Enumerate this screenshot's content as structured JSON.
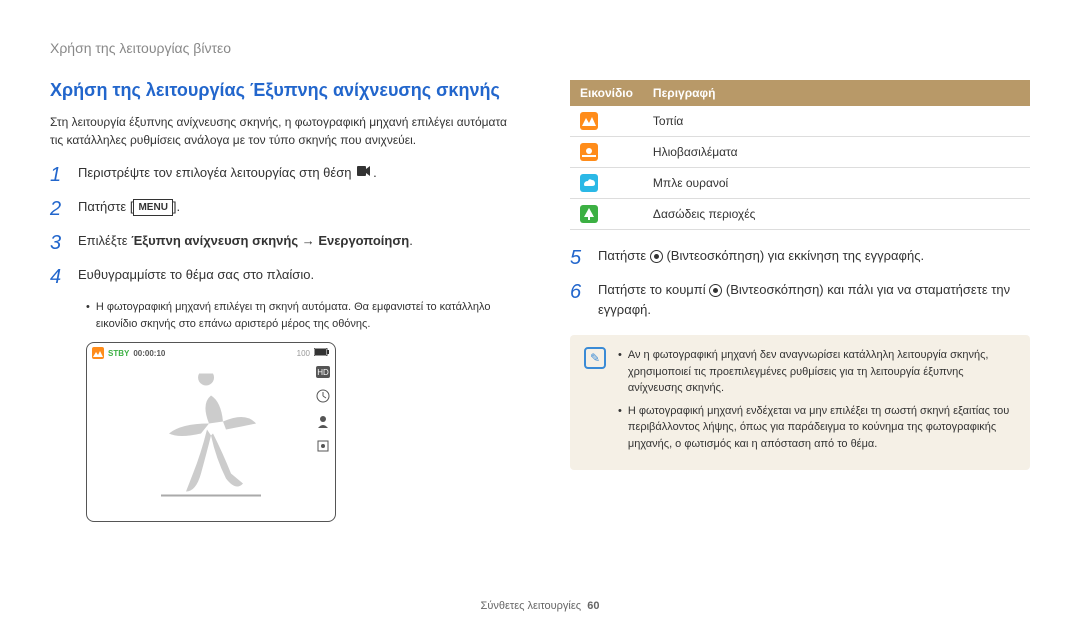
{
  "header": "Χρήση της λειτουργίας βίντεο",
  "title": "Χρήση της λειτουργίας Έξυπνης ανίχνευσης σκηνής",
  "intro": "Στη λειτουργία έξυπνης ανίχνευσης σκηνής, η φωτογραφική μηχανή επιλέγει αυτόματα τις κατάλληλες ρυθμίσεις ανάλογα με τον τύπο σκηνής που ανιχνεύει.",
  "steps_left": [
    {
      "n": "1",
      "text": "Περιστρέψτε τον επιλογέα λειτουργίας στη θέση ",
      "icon": "video"
    },
    {
      "n": "2",
      "text": "Πατήστε ",
      "icon": "menu",
      "after": "."
    },
    {
      "n": "3",
      "pre": "Επιλέξτε ",
      "bold": "Έξυπνη ανίχνευση σκηνής → Ενεργοποίηση",
      "after": "."
    },
    {
      "n": "4",
      "text": "Ευθυγραμμίστε το θέμα σας στο πλαίσιο."
    }
  ],
  "sub_bullet_left": "Η φωτογραφική μηχανή επιλέγει τη σκηνή αυτόματα. Θα εμφανιστεί το κατάλληλο εικονίδιο σκηνής στο επάνω αριστερό μέρος της οθόνης.",
  "shot": {
    "stby": "STBY",
    "time": "00:00:10",
    "bar": "~~~~~~",
    "num": "100"
  },
  "table": {
    "h1": "Εικονίδιο",
    "h2": "Περιγραφή",
    "rows": [
      {
        "color": "#ff8c1a",
        "svg": "landscape",
        "label": "Τοπία"
      },
      {
        "color": "#ff8c1a",
        "svg": "sunset",
        "label": "Ηλιοβασιλέματα"
      },
      {
        "color": "#2bb8e6",
        "svg": "sky",
        "label": "Μπλε ουρανοί"
      },
      {
        "color": "#3cb043",
        "svg": "forest",
        "label": "Δασώδεις περιοχές"
      }
    ]
  },
  "steps_right": [
    {
      "n": "5",
      "pre": "Πατήστε ",
      "after": " (Βιντεοσκόπηση) για εκκίνηση της εγγραφής."
    },
    {
      "n": "6",
      "pre": "Πατήστε το κουμπί ",
      "after": " (Βιντεοσκόπηση) και πάλι για να σταματήσετε την εγγραφή."
    }
  ],
  "notes": [
    "Αν η φωτογραφική μηχανή δεν αναγνωρίσει κατάλληλη λειτουργία σκηνής, χρησιμοποιεί τις προεπιλεγμένες ρυθμίσεις για τη λειτουργία έξυπνης ανίχνευσης σκηνής.",
    "Η φωτογραφική μηχανή ενδέχεται να μην επιλέξει τη σωστή σκηνή εξαιτίας του περιβάλλοντος λήψης, όπως για παράδειγμα το κούνημα της φωτογραφικής μηχανής, ο φωτισμός και η απόσταση από το θέμα."
  ],
  "footer": {
    "label": "Σύνθετες λειτουργίες",
    "page": "60"
  }
}
